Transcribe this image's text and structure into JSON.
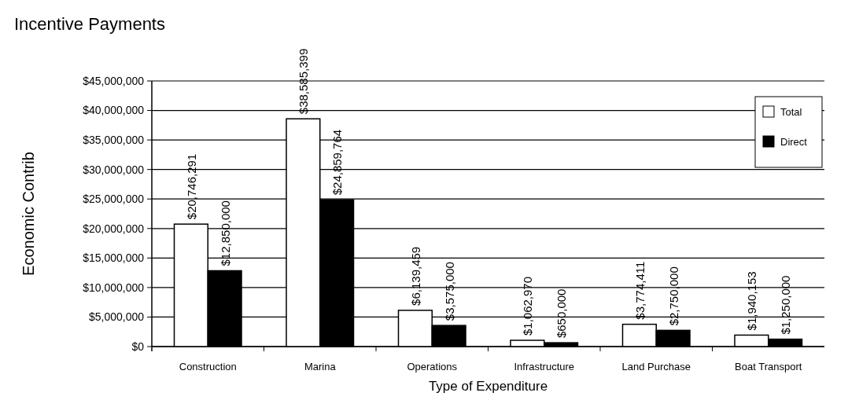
{
  "chart_data": {
    "type": "bar",
    "title": "Incentive Payments",
    "xlabel": "Type of Expenditure",
    "ylabel": "Economic Contrib",
    "categories": [
      "Construction",
      "Marina",
      "Operations",
      "Infrastructure",
      "Land Purchase",
      "Boat Transport"
    ],
    "series": [
      {
        "name": "Total",
        "color": "#ffffff",
        "values": [
          20746291,
          38585399,
          6139459,
          1062970,
          3774411,
          1940153
        ],
        "value_labels": [
          "$20,746,291",
          "$38,585,399",
          "$6,139,459",
          "$1,062,970",
          "$3,774,411",
          "$1,940,153"
        ]
      },
      {
        "name": "Direct",
        "color": "#000000",
        "values": [
          12850000,
          24859764,
          3575000,
          650000,
          2750000,
          1250000
        ],
        "value_labels": [
          "$12,850,000",
          "$24,859,764",
          "$3,575,000",
          "$650,000",
          "$2,750,000",
          "$1,250,000"
        ]
      }
    ],
    "ylim": [
      0,
      45000000
    ],
    "yticks": [
      {
        "value": 0,
        "label": "$0"
      },
      {
        "value": 5000000,
        "label": "$5,000,000"
      },
      {
        "value": 10000000,
        "label": "$10,000,000"
      },
      {
        "value": 15000000,
        "label": "$15,000,000"
      },
      {
        "value": 20000000,
        "label": "$20,000,000"
      },
      {
        "value": 25000000,
        "label": "$25,000,000"
      },
      {
        "value": 30000000,
        "label": "$30,000,000"
      },
      {
        "value": 35000000,
        "label": "$35,000,000"
      },
      {
        "value": 40000000,
        "label": "$40,000,000"
      },
      {
        "value": 45000000,
        "label": "$45,000,000"
      }
    ],
    "grid": "y",
    "legend": "top right"
  }
}
